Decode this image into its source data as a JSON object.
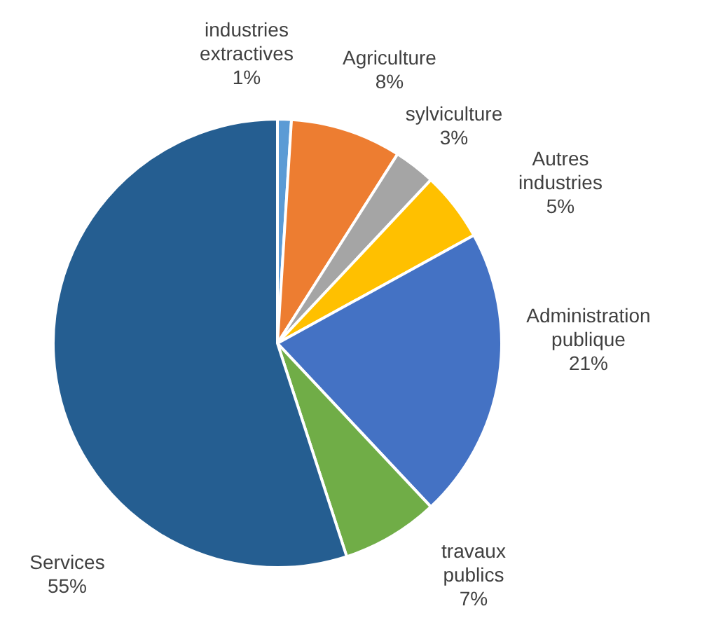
{
  "chart_data": {
    "type": "pie",
    "categories": [
      "industries extractives",
      "Agriculture",
      "sylviculture",
      "Autres industries",
      "Administration publique",
      "travaux publics",
      "Services"
    ],
    "values": [
      1,
      8,
      3,
      5,
      21,
      7,
      55
    ],
    "value_labels": [
      "1%",
      "8%",
      "3%",
      "5%",
      "21%",
      "7%",
      "55%"
    ],
    "colors": [
      "#5b9bd5",
      "#ed7d31",
      "#a5a5a5",
      "#ffc000",
      "#4472c4",
      "#70ad47",
      "#255e91"
    ],
    "legend": false
  }
}
